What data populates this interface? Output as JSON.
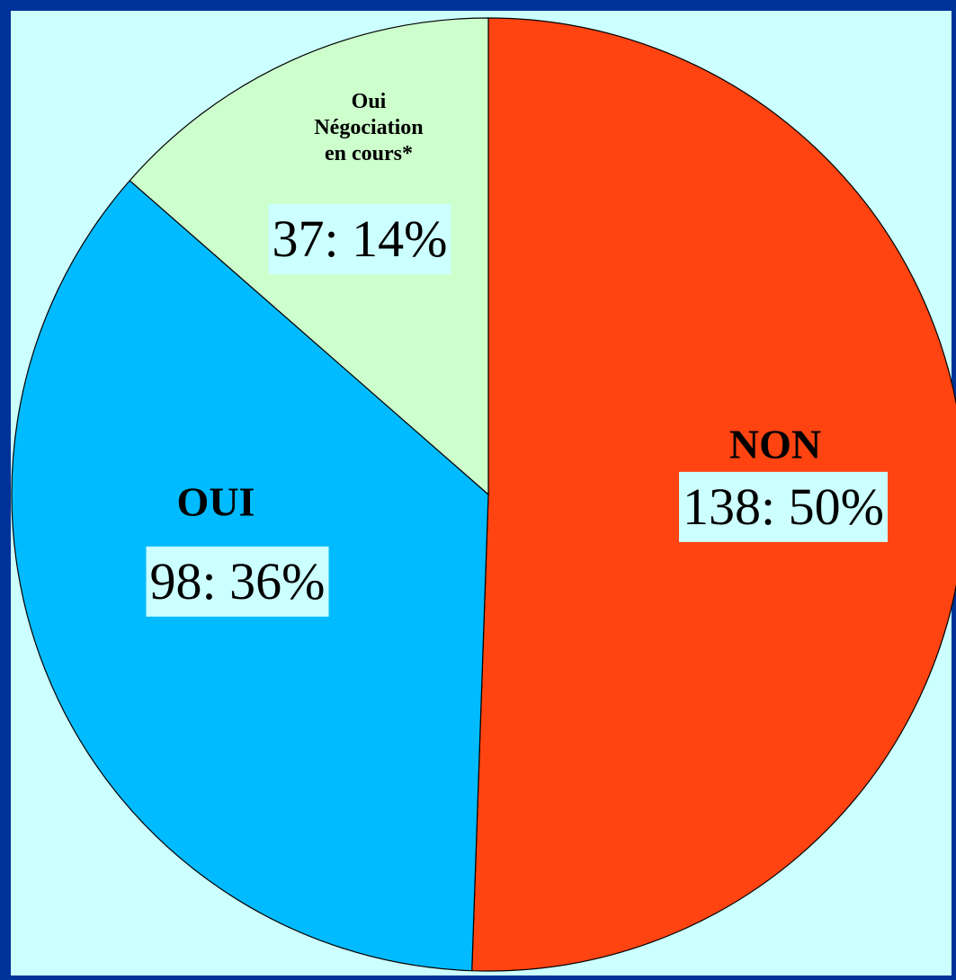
{
  "chart_data": {
    "type": "pie",
    "categories": [
      "NON",
      "OUI",
      "Oui Négociation en cours*"
    ],
    "values": [
      138,
      98,
      37
    ],
    "value_labels": [
      "138: 50%",
      "98: 36%",
      "37: 14%"
    ],
    "colors": [
      "#ff4411",
      "#00bbff",
      "#ccffcc"
    ]
  }
}
